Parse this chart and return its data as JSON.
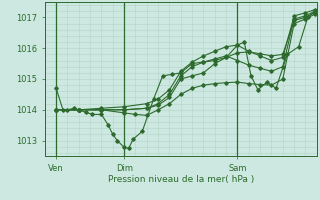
{
  "background_color": "#cce8e0",
  "line_color": "#2d6a2d",
  "grid_color": "#b8d8cc",
  "xlabel": "Pression niveau de la mer( hPa )",
  "xlabel_color": "#2d6a2d",
  "tick_color": "#2d6a2d",
  "ylim": [
    1012.5,
    1017.5
  ],
  "yticks": [
    1013,
    1014,
    1015,
    1016,
    1017
  ],
  "xtick_labels": [
    "Ven",
    "Dim",
    "Sam"
  ],
  "xtick_positions": [
    0.5,
    3.5,
    8.5
  ],
  "vline_positions": [
    0.5,
    3.5,
    8.5
  ],
  "xlim": [
    0.0,
    12.0
  ],
  "series": [
    [
      0.5,
      1014.7,
      0.8,
      1014.0,
      1.0,
      1014.0,
      1.3,
      1014.05,
      1.5,
      1014.0,
      1.8,
      1013.92,
      2.1,
      1013.85,
      2.5,
      1013.85,
      2.8,
      1013.5,
      3.0,
      1013.2,
      3.2,
      1013.0,
      3.5,
      1012.78,
      3.7,
      1012.75,
      3.9,
      1013.05,
      4.3,
      1013.3,
      4.8,
      1014.35,
      5.2,
      1015.1,
      5.6,
      1015.15,
      6.0,
      1015.2,
      6.5,
      1015.5,
      7.0,
      1015.55,
      7.5,
      1015.6,
      8.0,
      1015.7,
      8.5,
      1016.1,
      8.8,
      1016.2,
      9.1,
      1015.1,
      9.4,
      1014.65,
      9.8,
      1014.9,
      10.2,
      1014.7,
      10.7,
      1015.8,
      11.2,
      1016.05,
      11.6,
      1017.0,
      11.9,
      1017.2
    ],
    [
      0.5,
      1014.0,
      1.5,
      1014.0,
      2.5,
      1014.0,
      3.5,
      1013.9,
      4.0,
      1013.85,
      4.5,
      1013.82,
      5.0,
      1014.0,
      5.5,
      1014.2,
      6.0,
      1014.5,
      6.5,
      1014.7,
      7.0,
      1014.8,
      7.5,
      1014.85,
      8.0,
      1014.88,
      8.5,
      1014.9,
      9.0,
      1014.85,
      9.5,
      1014.82,
      10.0,
      1014.8,
      10.5,
      1015.0,
      11.0,
      1016.8,
      11.5,
      1016.95,
      11.9,
      1017.1
    ],
    [
      0.5,
      1014.0,
      1.5,
      1014.0,
      2.5,
      1014.0,
      3.5,
      1014.0,
      4.5,
      1014.05,
      5.0,
      1014.15,
      5.5,
      1014.4,
      6.0,
      1015.0,
      6.5,
      1015.1,
      7.0,
      1015.2,
      7.5,
      1015.5,
      8.0,
      1015.7,
      8.5,
      1015.85,
      9.0,
      1015.88,
      9.5,
      1015.82,
      10.0,
      1015.75,
      10.5,
      1015.8,
      11.0,
      1016.9,
      11.5,
      1017.0,
      11.9,
      1017.15
    ],
    [
      0.5,
      1014.0,
      1.5,
      1014.0,
      2.5,
      1014.0,
      3.5,
      1014.0,
      4.5,
      1014.05,
      5.0,
      1014.2,
      5.5,
      1014.5,
      6.0,
      1015.1,
      6.5,
      1015.4,
      7.0,
      1015.55,
      7.5,
      1015.65,
      8.0,
      1015.75,
      8.5,
      1015.6,
      9.0,
      1015.45,
      9.5,
      1015.35,
      10.0,
      1015.25,
      10.5,
      1015.4,
      11.0,
      1016.95,
      11.5,
      1017.05,
      11.9,
      1017.2
    ],
    [
      0.5,
      1014.0,
      1.5,
      1014.0,
      2.5,
      1014.05,
      3.5,
      1014.1,
      4.5,
      1014.2,
      5.0,
      1014.35,
      5.5,
      1014.65,
      6.0,
      1015.25,
      6.5,
      1015.55,
      7.0,
      1015.75,
      7.5,
      1015.9,
      8.0,
      1016.05,
      8.5,
      1016.1,
      9.0,
      1015.9,
      9.5,
      1015.75,
      10.0,
      1015.6,
      10.5,
      1015.7,
      11.0,
      1017.05,
      11.5,
      1017.15,
      11.9,
      1017.25
    ]
  ]
}
